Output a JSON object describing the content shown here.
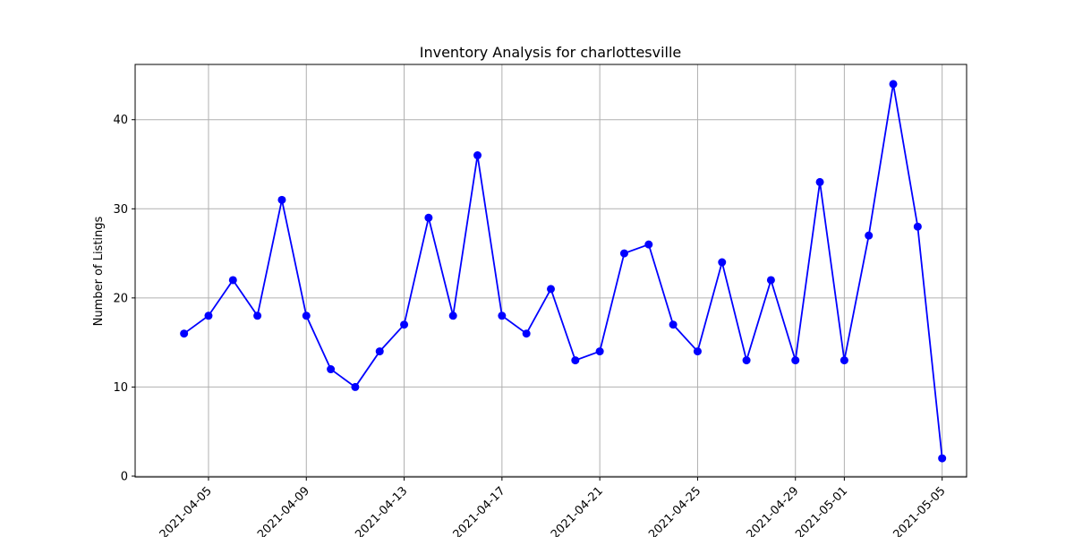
{
  "chart_data": {
    "type": "line",
    "title": "Inventory Analysis for charlottesville",
    "xlabel": "",
    "ylabel": "Number of Listings",
    "x_dates": [
      "2021-04-04",
      "2021-04-05",
      "2021-04-06",
      "2021-04-07",
      "2021-04-08",
      "2021-04-09",
      "2021-04-10",
      "2021-04-11",
      "2021-04-12",
      "2021-04-13",
      "2021-04-14",
      "2021-04-15",
      "2021-04-16",
      "2021-04-17",
      "2021-04-18",
      "2021-04-19",
      "2021-04-20",
      "2021-04-21",
      "2021-04-22",
      "2021-04-23",
      "2021-04-24",
      "2021-04-25",
      "2021-04-26",
      "2021-04-27",
      "2021-04-28",
      "2021-04-29",
      "2021-04-30",
      "2021-05-01",
      "2021-05-02",
      "2021-05-03",
      "2021-05-04",
      "2021-05-05"
    ],
    "series": [
      {
        "color": "#0000ff",
        "marker": "circle",
        "values": [
          16,
          18,
          22,
          18,
          31,
          18,
          12,
          10,
          14,
          17,
          29,
          18,
          36,
          18,
          16,
          21,
          13,
          14,
          25,
          26,
          17,
          14,
          24,
          13,
          22,
          13,
          33,
          13,
          27,
          44,
          28,
          2
        ]
      }
    ],
    "x_ticks": [
      "2021-04-05",
      "2021-04-09",
      "2021-04-13",
      "2021-04-17",
      "2021-04-21",
      "2021-04-25",
      "2021-04-29",
      "2021-05-01",
      "2021-05-05"
    ],
    "y_ticks": [
      0,
      10,
      20,
      30,
      40
    ],
    "ylim": [
      -0.1,
      46.2
    ],
    "xlim": [
      "2021-04-02",
      "2021-05-06"
    ],
    "grid": true,
    "legend": "none"
  }
}
